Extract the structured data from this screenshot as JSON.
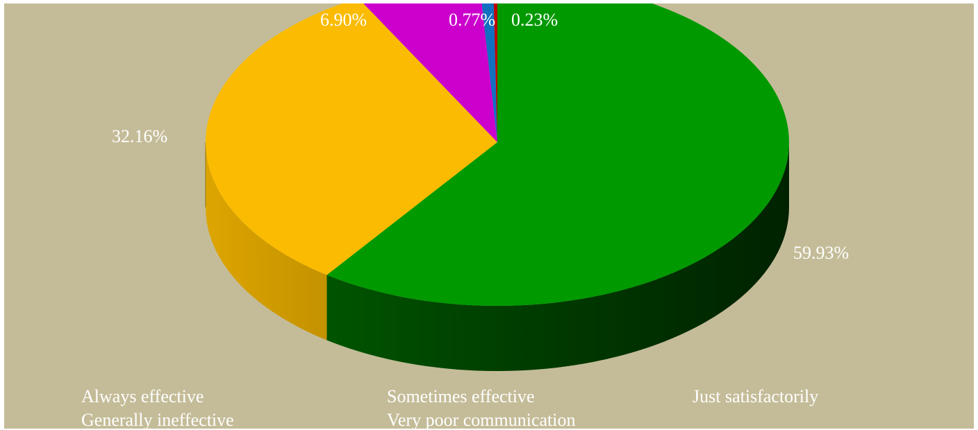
{
  "chart_data": {
    "type": "pie",
    "style": "3d",
    "categories": [
      "Always effective",
      "Sometimes effective",
      "Just satisfactorily",
      "Generally ineffective",
      "Very poor communication"
    ],
    "values": [
      59.93,
      32.16,
      6.9,
      0.77,
      0.23
    ],
    "data_labels": [
      "59.93%",
      "32.16%",
      "6.90%",
      "0.77%",
      "0.23%"
    ],
    "colors": [
      "#009900",
      "#fbbb00",
      "#cc00cc",
      "#1170c0",
      "#c00000"
    ],
    "background": "#c4bc98",
    "legend_position": "bottom"
  }
}
